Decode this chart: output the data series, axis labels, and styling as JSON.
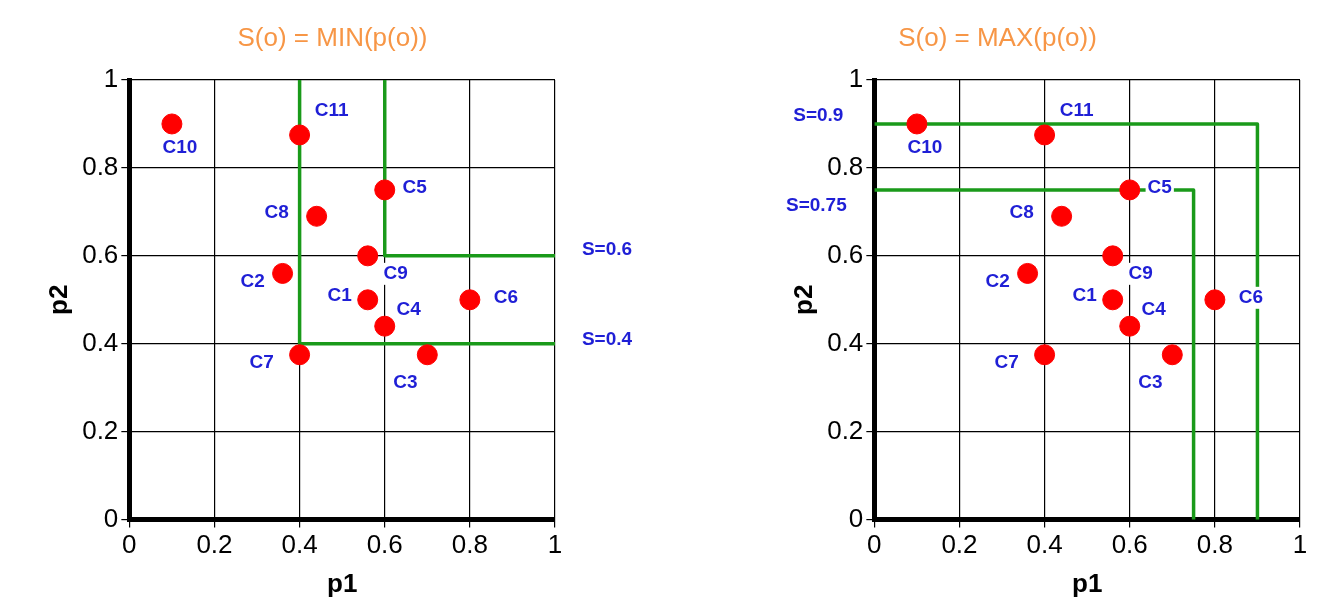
{
  "chart_data": [
    {
      "type": "scatter",
      "title": "S(o) = MIN(p(o))",
      "xlabel": "p1",
      "ylabel": "p2",
      "xlim": [
        0,
        1
      ],
      "ylim": [
        0,
        1
      ],
      "xticks": [
        0,
        0.2,
        0.4,
        0.6,
        0.8,
        1
      ],
      "yticks": [
        0,
        0.2,
        0.4,
        0.6,
        0.8,
        1
      ],
      "grid": true,
      "marker": "circle",
      "series": [
        {
          "color": "#ff0000",
          "x": [
            0.56,
            0.36,
            0.7,
            0.6,
            0.6,
            0.8,
            0.4,
            0.44,
            0.56,
            0.1,
            0.4
          ],
          "values": [
            0.5,
            0.56,
            0.375,
            0.44,
            0.75,
            0.5,
            0.375,
            0.69,
            0.6,
            0.9,
            0.875
          ]
        },
        {
          "type": "line",
          "marker": "none",
          "color": "#1a9a1a",
          "x": [
            0.4,
            0.4,
            1
          ],
          "values": [
            1,
            0.4,
            0.4
          ]
        },
        {
          "type": "line",
          "marker": "none",
          "color": "#1a9a1a",
          "x": [
            0.6,
            0.6,
            1
          ],
          "values": [
            1,
            0.6,
            0.6
          ]
        }
      ],
      "annotations": [
        {
          "text": "C1",
          "x": 0.56,
          "y": 0.5
        },
        {
          "text": "C2",
          "x": 0.36,
          "y": 0.56
        },
        {
          "text": "C3",
          "x": 0.7,
          "y": 0.375
        },
        {
          "text": "C4",
          "x": 0.6,
          "y": 0.44
        },
        {
          "text": "C5",
          "x": 0.6,
          "y": 0.75
        },
        {
          "text": "C6",
          "x": 0.8,
          "y": 0.5
        },
        {
          "text": "C7",
          "x": 0.4,
          "y": 0.375
        },
        {
          "text": "C8",
          "x": 0.44,
          "y": 0.69
        },
        {
          "text": "C9",
          "x": 0.56,
          "y": 0.6
        },
        {
          "text": "C10",
          "x": 0.1,
          "y": 0.9
        },
        {
          "text": "C11",
          "x": 0.4,
          "y": 0.875
        },
        {
          "text": "S=0.6",
          "x": 1,
          "y": 0.6
        },
        {
          "text": "S=0.4",
          "x": 1,
          "y": 0.4
        }
      ]
    },
    {
      "type": "scatter",
      "title": "S(o) = MAX(p(o))",
      "xlabel": "p1",
      "ylabel": "p2",
      "xlim": [
        0,
        1
      ],
      "ylim": [
        0,
        1
      ],
      "xticks": [
        0,
        0.2,
        0.4,
        0.6,
        0.8,
        1
      ],
      "yticks": [
        0,
        0.2,
        0.4,
        0.6,
        0.8,
        1
      ],
      "grid": true,
      "marker": "circle",
      "series": [
        {
          "color": "#ff0000",
          "x": [
            0.56,
            0.36,
            0.7,
            0.6,
            0.6,
            0.8,
            0.4,
            0.44,
            0.56,
            0.1,
            0.4
          ],
          "values": [
            0.5,
            0.56,
            0.375,
            0.44,
            0.75,
            0.5,
            0.375,
            0.69,
            0.6,
            0.9,
            0.875
          ]
        },
        {
          "type": "line",
          "marker": "none",
          "color": "#1a9a1a",
          "x": [
            0,
            0.9,
            0.9
          ],
          "values": [
            0.9,
            0.9,
            0
          ]
        },
        {
          "type": "line",
          "marker": "none",
          "color": "#1a9a1a",
          "x": [
            0,
            0.75,
            0.75
          ],
          "values": [
            0.75,
            0.75,
            0
          ]
        }
      ],
      "annotations": [
        {
          "text": "C1",
          "x": 0.56,
          "y": 0.5
        },
        {
          "text": "C2",
          "x": 0.36,
          "y": 0.56
        },
        {
          "text": "C3",
          "x": 0.7,
          "y": 0.375
        },
        {
          "text": "C4",
          "x": 0.6,
          "y": 0.44
        },
        {
          "text": "C5",
          "x": 0.6,
          "y": 0.75
        },
        {
          "text": "C6",
          "x": 0.8,
          "y": 0.5
        },
        {
          "text": "C7",
          "x": 0.4,
          "y": 0.375
        },
        {
          "text": "C8",
          "x": 0.44,
          "y": 0.69
        },
        {
          "text": "C9",
          "x": 0.56,
          "y": 0.6
        },
        {
          "text": "C10",
          "x": 0.1,
          "y": 0.9
        },
        {
          "text": "C11",
          "x": 0.4,
          "y": 0.875
        },
        {
          "text": "S=0.9",
          "x": 0,
          "y": 0.9
        },
        {
          "text": "S=0.75",
          "x": 0,
          "y": 0.75
        }
      ]
    }
  ]
}
